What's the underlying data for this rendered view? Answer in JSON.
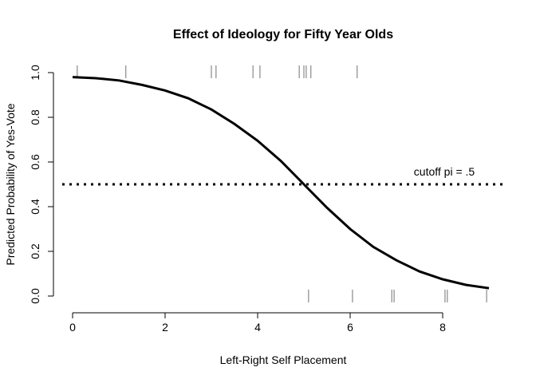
{
  "chart_data": {
    "type": "line",
    "title": "Effect of Ideology for Fifty Year Olds",
    "xlabel": "Left-Right Self Placement",
    "ylabel": "Predicted Probability of Yes-Vote",
    "xlim": [
      0,
      9
    ],
    "ylim": [
      0,
      1
    ],
    "x_ticks": [
      0,
      2,
      4,
      6,
      8
    ],
    "y_ticks": [
      0.0,
      0.2,
      0.4,
      0.6,
      0.8,
      1.0
    ],
    "x_tick_labels": [
      "0",
      "2",
      "4",
      "6",
      "8"
    ],
    "y_tick_labels": [
      "0.0",
      "0.2",
      "0.4",
      "0.6",
      "0.8",
      "1.0"
    ],
    "series": [
      {
        "x": [
          0,
          0.5,
          1,
          1.5,
          2,
          2.5,
          3,
          3.5,
          4,
          4.5,
          5,
          5.5,
          6,
          6.5,
          7,
          7.5,
          8,
          8.5,
          9
        ],
        "y": [
          0.98,
          0.975,
          0.965,
          0.945,
          0.92,
          0.885,
          0.835,
          0.77,
          0.695,
          0.605,
          0.5,
          0.395,
          0.3,
          0.22,
          0.16,
          0.11,
          0.075,
          0.05,
          0.035
        ]
      }
    ],
    "cutoff": {
      "y": 0.5,
      "label": "cutoff pi = .5"
    },
    "rug_top_x": [
      0.1,
      1.15,
      3.0,
      3.1,
      3.9,
      4.05,
      4.9,
      5.0,
      5.05,
      5.15,
      6.15
    ],
    "rug_bottom_x": [
      5.1,
      6.05,
      6.9,
      6.95,
      8.05,
      8.1,
      8.95
    ],
    "grid": false,
    "legend": "none"
  }
}
